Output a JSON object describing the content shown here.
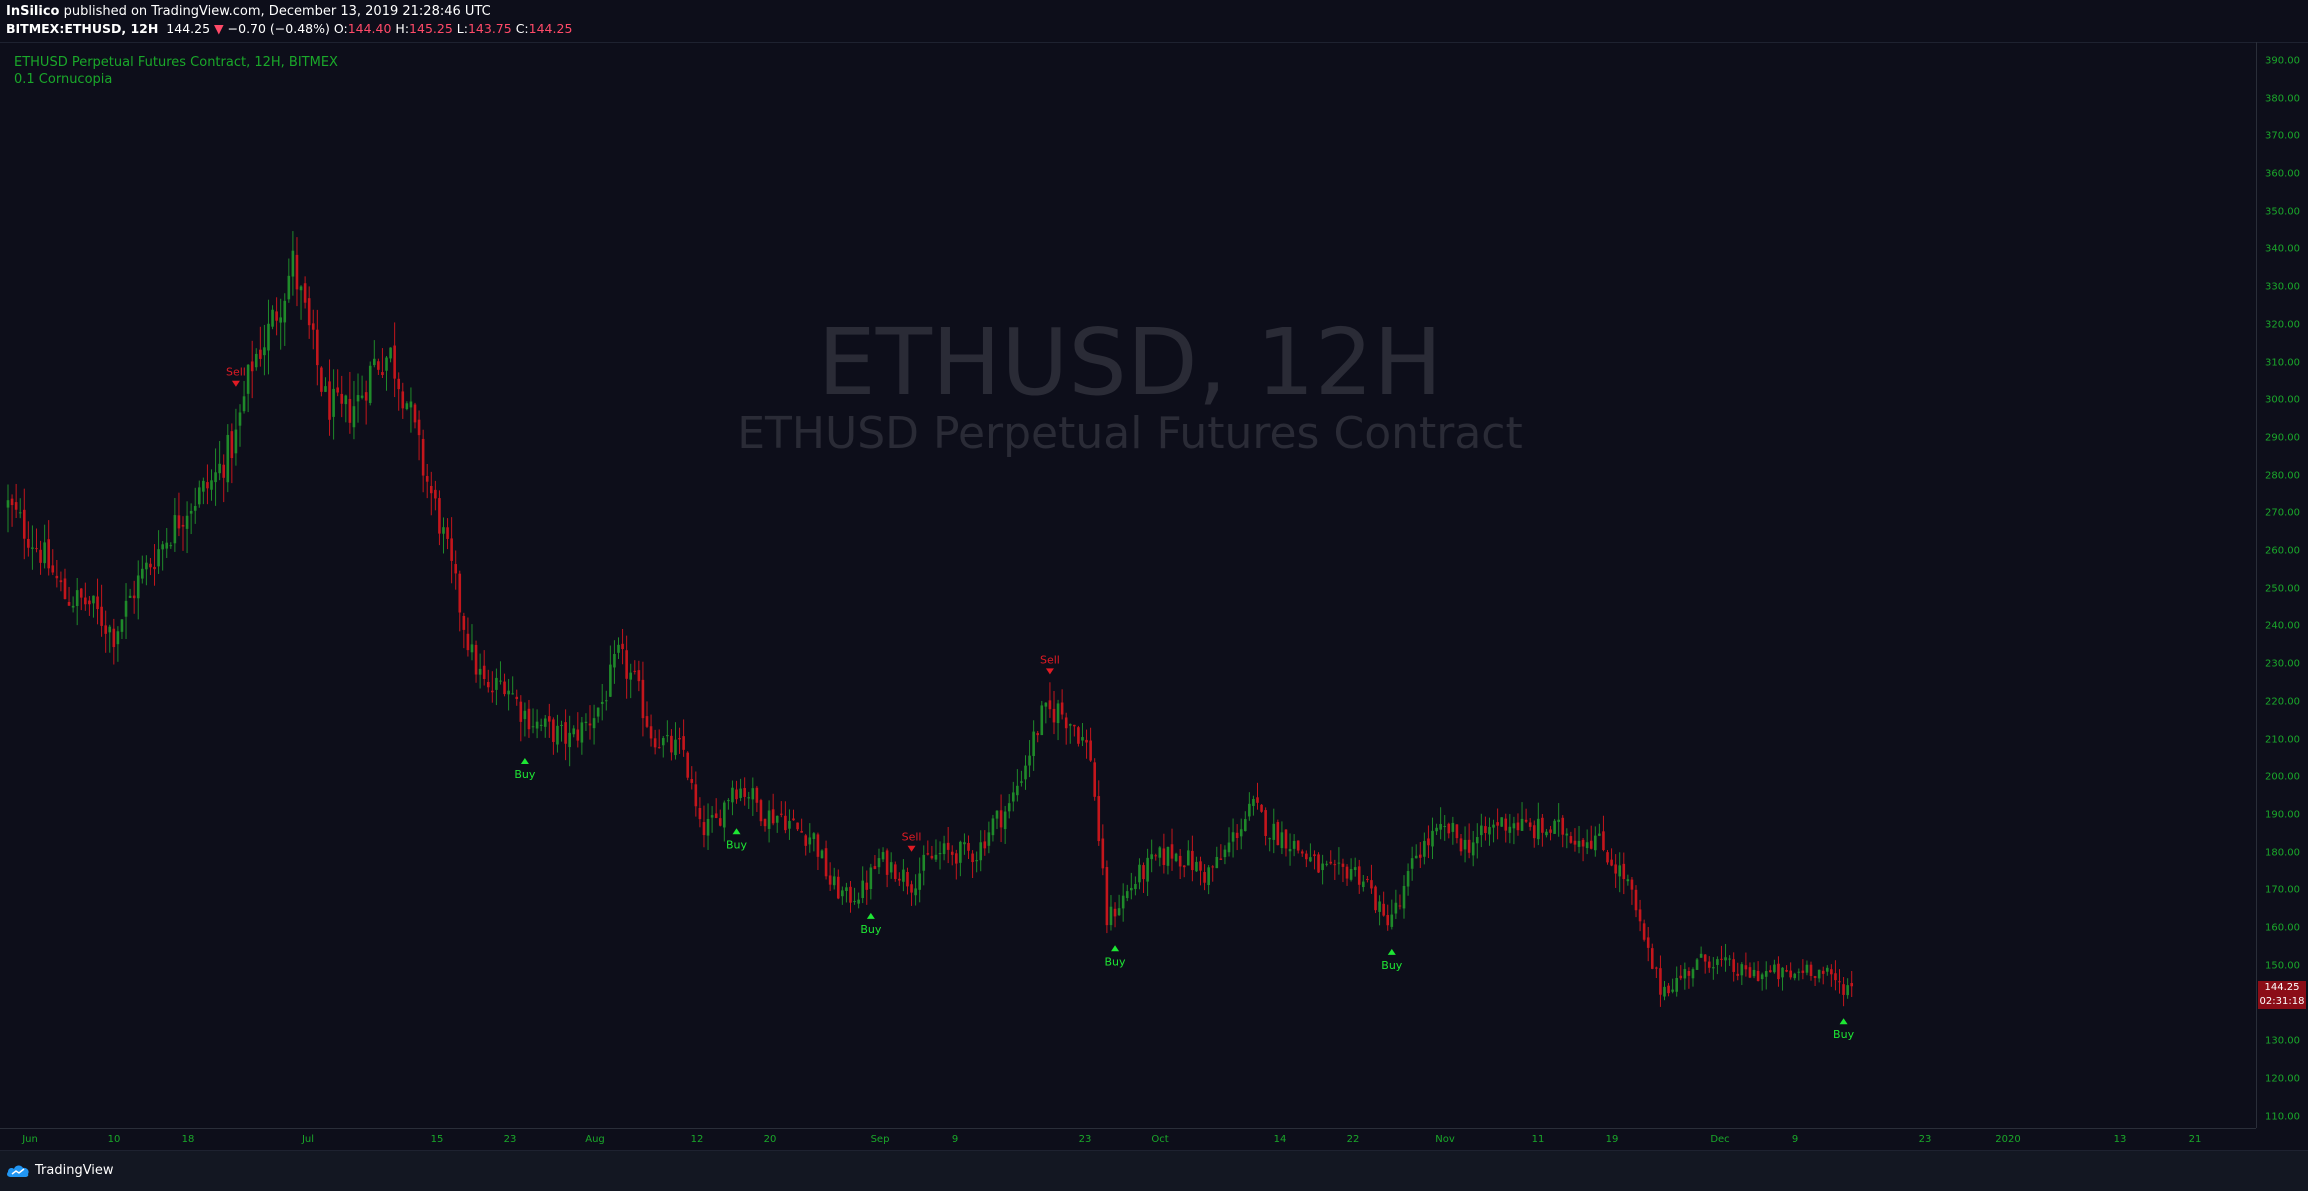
{
  "header": {
    "author": "InSilico",
    "published_text": "published on TradingView.com, December 13, 2019 21:28:46 UTC",
    "symbol": "BITMEX:ETHUSD, 12H",
    "last": "144.25",
    "change": "−0.70 (−0.48%)",
    "o_label": "O:",
    "o_value": "144.40",
    "h_label": "H:",
    "h_value": "145.25",
    "l_label": "L:",
    "l_value": "143.75",
    "c_label": "C:",
    "c_value": "144.25"
  },
  "legend": {
    "line1": "ETHUSD Perpetual Futures Contract, 12H, BITMEX",
    "line2": "0.1 Cornucopia"
  },
  "watermark": {
    "title": "ETHUSD, 12H",
    "subtitle": "ETHUSD Perpetual Futures Contract"
  },
  "price_badge": {
    "price": "144.25",
    "countdown": "02:31:18"
  },
  "footer": {
    "brand": "TradingView"
  },
  "colors": {
    "bg": "#0d0e1a",
    "up": "#1f8a2a",
    "down": "#c4161c",
    "buy": "#1ee634",
    "sell": "#e01b24",
    "axis_text": "#1aa82a",
    "watermark": "#2a2b36"
  },
  "chart_data": {
    "type": "candlestick",
    "ylim": [
      107,
      395
    ],
    "y_ticks": [
      110,
      120,
      130,
      140,
      150,
      160,
      170,
      180,
      190,
      200,
      210,
      220,
      230,
      240,
      250,
      260,
      270,
      280,
      290,
      300,
      310,
      320,
      330,
      340,
      350,
      360,
      370,
      380,
      390
    ],
    "x_ticks": [
      "Jun",
      "10",
      "18",
      "Jul",
      "15",
      "23",
      "Aug",
      "12",
      "20",
      "Sep",
      "9",
      "23",
      "Oct",
      "14",
      "22",
      "Nov",
      "11",
      "19",
      "Dec",
      "9",
      "23",
      "2020",
      "13",
      "21"
    ],
    "price_path": [
      [
        0,
        272
      ],
      [
        8,
        260
      ],
      [
        14,
        248
      ],
      [
        20,
        246
      ],
      [
        26,
        238
      ],
      [
        32,
        252
      ],
      [
        38,
        262
      ],
      [
        44,
        272
      ],
      [
        50,
        278
      ],
      [
        56,
        290
      ],
      [
        60,
        310
      ],
      [
        64,
        318
      ],
      [
        68,
        330
      ],
      [
        70,
        336
      ],
      [
        74,
        318
      ],
      [
        78,
        300
      ],
      [
        82,
        296
      ],
      [
        86,
        300
      ],
      [
        90,
        310
      ],
      [
        94,
        312
      ],
      [
        98,
        300
      ],
      [
        102,
        282
      ],
      [
        106,
        268
      ],
      [
        110,
        250
      ],
      [
        114,
        232
      ],
      [
        118,
        222
      ],
      [
        122,
        226
      ],
      [
        126,
        218
      ],
      [
        130,
        214
      ],
      [
        134,
        212
      ],
      [
        138,
        210
      ],
      [
        142,
        214
      ],
      [
        146,
        220
      ],
      [
        150,
        232
      ],
      [
        154,
        225
      ],
      [
        158,
        212
      ],
      [
        162,
        208
      ],
      [
        166,
        207
      ],
      [
        170,
        186
      ],
      [
        174,
        188
      ],
      [
        178,
        198
      ],
      [
        182,
        196
      ],
      [
        186,
        190
      ],
      [
        190,
        190
      ],
      [
        194,
        186
      ],
      [
        198,
        184
      ],
      [
        202,
        172
      ],
      [
        206,
        168
      ],
      [
        210,
        170
      ],
      [
        214,
        178
      ],
      [
        218,
        176
      ],
      [
        222,
        172
      ],
      [
        226,
        178
      ],
      [
        230,
        180
      ],
      [
        234,
        180
      ],
      [
        238,
        180
      ],
      [
        242,
        188
      ],
      [
        246,
        192
      ],
      [
        250,
        204
      ],
      [
        254,
        216
      ],
      [
        258,
        218
      ],
      [
        262,
        214
      ],
      [
        266,
        206
      ],
      [
        270,
        162
      ],
      [
        274,
        168
      ],
      [
        278,
        174
      ],
      [
        282,
        178
      ],
      [
        286,
        180
      ],
      [
        290,
        178
      ],
      [
        294,
        174
      ],
      [
        298,
        178
      ],
      [
        302,
        186
      ],
      [
        306,
        192
      ],
      [
        310,
        186
      ],
      [
        314,
        184
      ],
      [
        318,
        180
      ],
      [
        322,
        176
      ],
      [
        326,
        174
      ],
      [
        330,
        176
      ],
      [
        334,
        172
      ],
      [
        338,
        162
      ],
      [
        342,
        166
      ],
      [
        346,
        180
      ],
      [
        350,
        184
      ],
      [
        354,
        186
      ],
      [
        358,
        182
      ],
      [
        362,
        184
      ],
      [
        366,
        188
      ],
      [
        370,
        188
      ],
      [
        374,
        186
      ],
      [
        378,
        186
      ],
      [
        382,
        186
      ],
      [
        386,
        184
      ],
      [
        390,
        184
      ],
      [
        394,
        178
      ],
      [
        398,
        172
      ],
      [
        402,
        156
      ],
      [
        406,
        144
      ],
      [
        410,
        146
      ],
      [
        414,
        150
      ],
      [
        418,
        152
      ],
      [
        422,
        150
      ],
      [
        426,
        148
      ],
      [
        430,
        148
      ],
      [
        434,
        148
      ],
      [
        438,
        147
      ],
      [
        442,
        150
      ],
      [
        446,
        148
      ],
      [
        450,
        145
      ],
      [
        453,
        144.25
      ]
    ],
    "signals": [
      {
        "label": "Sell",
        "bar": 56
      },
      {
        "label": "Buy",
        "bar": 127
      },
      {
        "label": "Buy",
        "bar": 179
      },
      {
        "label": "Buy",
        "bar": 212
      },
      {
        "label": "Sell",
        "bar": 222
      },
      {
        "label": "Sell",
        "bar": 256
      },
      {
        "label": "Buy",
        "bar": 272
      },
      {
        "label": "Buy",
        "bar": 340
      },
      {
        "label": "Buy",
        "bar": 451
      }
    ]
  }
}
